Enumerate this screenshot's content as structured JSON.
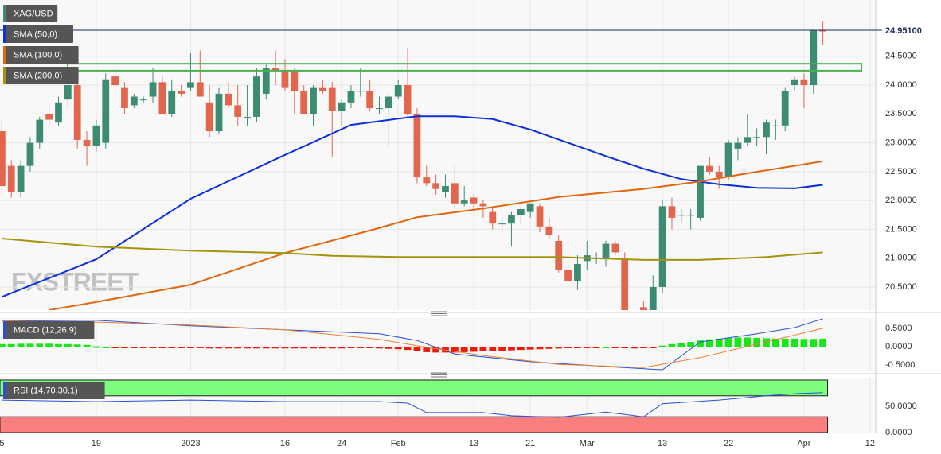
{
  "chart_data": [
    {
      "type": "candlestick",
      "title": "XAG/USD",
      "watermark": "FXSTREET",
      "up_color": "#3d8b73",
      "down_color": "#e2664d",
      "ohlc": [
        [
          23.2,
          23.4,
          22.1,
          22.25
        ],
        [
          22.6,
          22.7,
          22.05,
          22.15
        ],
        [
          22.15,
          22.7,
          22.05,
          22.6
        ],
        [
          22.6,
          23.1,
          22.5,
          23.0
        ],
        [
          23.0,
          23.45,
          22.9,
          23.4
        ],
        [
          23.5,
          23.7,
          23.3,
          23.4
        ],
        [
          23.35,
          23.8,
          23.3,
          23.7
        ],
        [
          23.75,
          24.2,
          23.6,
          24.0
        ],
        [
          24.0,
          24.1,
          22.9,
          23.05
        ],
        [
          23.05,
          23.2,
          22.6,
          22.95
        ],
        [
          22.95,
          23.4,
          22.85,
          23.3
        ],
        [
          23.0,
          24.2,
          22.9,
          24.1
        ],
        [
          24.15,
          24.3,
          23.9,
          24.0
        ],
        [
          23.95,
          24.05,
          23.5,
          23.6
        ],
        [
          23.65,
          23.85,
          23.6,
          23.8
        ],
        [
          23.75,
          23.8,
          23.7,
          23.75
        ],
        [
          23.8,
          24.3,
          23.7,
          24.05
        ],
        [
          24.05,
          24.15,
          23.5,
          23.5
        ],
        [
          23.5,
          24.1,
          23.45,
          23.9
        ],
        [
          23.9,
          24.0,
          23.8,
          23.85
        ],
        [
          23.95,
          24.55,
          23.9,
          24.05
        ],
        [
          24.05,
          24.6,
          23.85,
          23.8
        ],
        [
          23.7,
          24.0,
          23.1,
          23.2
        ],
        [
          23.2,
          23.95,
          23.15,
          23.85
        ],
        [
          23.85,
          24.05,
          23.6,
          23.65
        ],
        [
          23.65,
          24.0,
          23.3,
          23.45
        ],
        [
          23.45,
          24.0,
          23.3,
          23.45
        ],
        [
          23.45,
          24.3,
          23.35,
          24.15
        ],
        [
          23.85,
          24.35,
          23.75,
          24.3
        ],
        [
          24.3,
          24.6,
          24.0,
          24.25
        ],
        [
          24.25,
          24.45,
          23.9,
          23.95
        ],
        [
          24.25,
          24.3,
          23.5,
          23.9
        ],
        [
          23.9,
          24.0,
          23.5,
          23.5
        ],
        [
          23.5,
          24.0,
          23.3,
          23.95
        ],
        [
          23.95,
          24.1,
          23.85,
          23.9
        ],
        [
          23.95,
          24.05,
          22.75,
          23.55
        ],
        [
          23.55,
          23.75,
          23.3,
          23.7
        ],
        [
          23.7,
          24.0,
          23.6,
          23.9
        ],
        [
          23.9,
          24.3,
          23.8,
          23.9
        ],
        [
          23.9,
          24.1,
          23.55,
          23.6
        ],
        [
          23.6,
          23.8,
          23.5,
          23.6
        ],
        [
          23.6,
          23.85,
          22.95,
          23.8
        ],
        [
          23.8,
          24.1,
          23.75,
          24.0
        ],
        [
          24.0,
          24.65,
          23.45,
          23.5
        ],
        [
          23.5,
          23.6,
          22.3,
          22.4
        ],
        [
          22.4,
          22.6,
          22.25,
          22.3
        ],
        [
          22.3,
          22.45,
          22.1,
          22.2
        ],
        [
          22.15,
          22.45,
          22.05,
          22.25
        ],
        [
          22.3,
          22.6,
          21.9,
          21.95
        ],
        [
          21.95,
          22.25,
          21.9,
          22.0
        ],
        [
          22.05,
          22.1,
          21.85,
          21.95
        ],
        [
          21.95,
          22.0,
          21.7,
          21.9
        ],
        [
          21.8,
          21.9,
          21.5,
          21.6
        ],
        [
          21.6,
          21.7,
          21.45,
          21.6
        ],
        [
          21.6,
          21.8,
          21.2,
          21.75
        ],
        [
          21.75,
          21.9,
          21.6,
          21.85
        ],
        [
          21.8,
          21.95,
          21.7,
          21.95
        ],
        [
          21.9,
          21.95,
          21.45,
          21.55
        ],
        [
          21.55,
          21.7,
          21.35,
          21.4
        ],
        [
          21.3,
          21.4,
          20.75,
          20.8
        ],
        [
          20.8,
          20.95,
          20.6,
          20.6
        ],
        [
          20.6,
          21.05,
          20.45,
          20.9
        ],
        [
          20.95,
          21.3,
          20.8,
          21.05
        ],
        [
          21.0,
          21.1,
          20.9,
          21.0
        ],
        [
          21.0,
          21.3,
          20.85,
          21.25
        ],
        [
          21.25,
          21.3,
          21.05,
          21.1
        ],
        [
          21.0,
          21.1,
          20.05,
          20.1
        ],
        [
          20.1,
          20.25,
          20.0,
          20.05
        ],
        [
          20.15,
          20.25,
          20.05,
          20.1
        ],
        [
          20.1,
          20.7,
          20.05,
          20.5
        ],
        [
          20.5,
          22.0,
          20.4,
          21.9
        ],
        [
          21.9,
          22.05,
          21.5,
          21.7
        ],
        [
          21.75,
          21.85,
          21.6,
          21.75
        ],
        [
          21.75,
          21.85,
          21.5,
          21.75
        ],
        [
          21.7,
          22.6,
          21.65,
          22.6
        ],
        [
          22.6,
          22.75,
          22.45,
          22.5
        ],
        [
          22.5,
          22.6,
          22.2,
          22.4
        ],
        [
          22.4,
          23.05,
          22.35,
          23.0
        ],
        [
          22.9,
          23.1,
          22.7,
          23.0
        ],
        [
          23.0,
          23.5,
          22.95,
          23.1
        ],
        [
          23.1,
          23.25,
          22.95,
          23.1
        ],
        [
          23.1,
          23.4,
          22.8,
          23.35
        ],
        [
          23.3,
          23.4,
          23.05,
          23.3
        ],
        [
          23.3,
          23.95,
          23.2,
          23.9
        ],
        [
          24.0,
          24.15,
          23.9,
          24.1
        ],
        [
          24.1,
          24.2,
          23.6,
          24.0
        ],
        [
          24.0,
          24.95,
          23.85,
          24.95
        ],
        [
          24.95,
          25.1,
          24.7,
          24.93
        ]
      ],
      "series": [
        {
          "name": "SMA (50,0)",
          "color": "#0b2fd8",
          "x": [
            0,
            10,
            20,
            30,
            37,
            44,
            48,
            52,
            56,
            60,
            64,
            68,
            72,
            76,
            80,
            84,
            87
          ],
          "values": [
            20.33,
            20.98,
            22.03,
            22.79,
            23.31,
            23.46,
            23.46,
            23.41,
            23.23,
            23.0,
            22.77,
            22.55,
            22.37,
            22.28,
            22.22,
            22.21,
            22.27
          ]
        },
        {
          "name": "SMA (100,0)",
          "color": "#e2660f",
          "x": [
            5,
            10,
            20,
            30,
            39,
            44,
            51,
            59,
            68,
            74,
            79,
            87
          ],
          "values": [
            20.1,
            20.24,
            20.54,
            21.09,
            21.48,
            21.71,
            21.86,
            22.06,
            22.2,
            22.33,
            22.47,
            22.68
          ]
        },
        {
          "name": "SMA (200,0)",
          "color": "#a5930e",
          "x": [
            0,
            10,
            20,
            30,
            35,
            42,
            59,
            68,
            74,
            81,
            87
          ],
          "values": [
            21.34,
            21.2,
            21.13,
            21.09,
            21.04,
            21.02,
            21.02,
            20.97,
            20.97,
            21.02,
            21.1
          ]
        }
      ],
      "zone": [
        24.25,
        24.37
      ],
      "zone_color": "#4caf50",
      "last_price": {
        "value": 24.951,
        "label": "24.95100"
      },
      "xlim": [
        -0.2,
        92.6
      ],
      "xticks": [
        {
          "value": 0,
          "label": "5"
        },
        {
          "value": 10,
          "label": "19"
        },
        {
          "value": 20,
          "label": "2023"
        },
        {
          "value": 30,
          "label": "16"
        },
        {
          "value": 36,
          "label": "24"
        },
        {
          "value": 42,
          "label": "Feb"
        },
        {
          "value": 50,
          "label": "13"
        },
        {
          "value": 56,
          "label": "21"
        },
        {
          "value": 62,
          "label": "Mar"
        },
        {
          "value": 70,
          "label": "13"
        },
        {
          "value": 77,
          "label": "22"
        },
        {
          "value": 85,
          "label": "Apr"
        },
        {
          "value": 92,
          "label": "12"
        }
      ],
      "ylim": [
        20.1,
        25.475
      ],
      "yticks": [
        {
          "value": 20.5,
          "label": "20.5000"
        },
        {
          "value": 21,
          "label": "21.0000"
        },
        {
          "value": 21.5,
          "label": "21.5000"
        },
        {
          "value": 22,
          "label": "22.0000"
        },
        {
          "value": 22.5,
          "label": "22.5000"
        },
        {
          "value": 23,
          "label": "23.0000"
        },
        {
          "value": 23.5,
          "label": "23.5000"
        },
        {
          "value": 24,
          "label": "24.0000"
        },
        {
          "value": 24.5,
          "label": "24.5000"
        }
      ]
    },
    {
      "type": "macd",
      "title": "MACD (12,26,9)",
      "histogram": {
        "pos_color": "#19e619",
        "neg_color": "#f01a0a",
        "values": [
          0.07,
          0.07,
          0.08,
          0.08,
          0.08,
          0.08,
          0.07,
          0.07,
          0.06,
          0.05,
          0.01,
          0.0,
          -0.01,
          -0.02,
          -0.02,
          -0.02,
          -0.03,
          -0.03,
          -0.03,
          -0.03,
          -0.04,
          -0.04,
          -0.05,
          -0.05,
          -0.05,
          -0.05,
          -0.05,
          -0.05,
          -0.05,
          -0.05,
          -0.05,
          -0.05,
          -0.05,
          -0.05,
          -0.05,
          -0.05,
          -0.05,
          -0.04,
          -0.04,
          -0.04,
          -0.05,
          -0.06,
          -0.07,
          -0.09,
          -0.13,
          -0.15,
          -0.16,
          -0.16,
          -0.16,
          -0.15,
          -0.14,
          -0.13,
          -0.12,
          -0.11,
          -0.1,
          -0.09,
          -0.08,
          -0.07,
          -0.06,
          -0.05,
          -0.04,
          -0.03,
          -0.02,
          -0.01,
          0.0,
          -0.02,
          -0.04,
          -0.05,
          -0.04,
          -0.02,
          0.03,
          0.07,
          0.1,
          0.13,
          0.17,
          0.2,
          0.22,
          0.24,
          0.25,
          0.25,
          0.24,
          0.23,
          0.22,
          0.22,
          0.22,
          0.21,
          0.21,
          0.22
        ]
      },
      "series": [
        {
          "color": "#2b4fd8",
          "x": [
            0,
            10,
            20,
            30,
            40,
            44,
            48,
            56,
            64,
            70,
            74,
            80,
            84,
            87
          ],
          "values": [
            0.7,
            0.72,
            0.57,
            0.46,
            0.35,
            0.17,
            -0.2,
            -0.41,
            -0.54,
            -0.63,
            0.13,
            0.35,
            0.52,
            0.76
          ]
        },
        {
          "color": "#f08030",
          "x": [
            0,
            10,
            20,
            30,
            40,
            45,
            51,
            59,
            68,
            74,
            81,
            87
          ],
          "values": [
            0.7,
            0.67,
            0.59,
            0.46,
            0.2,
            -0.02,
            -0.24,
            -0.48,
            -0.57,
            -0.3,
            0.13,
            0.5
          ]
        }
      ],
      "ylim": [
        -0.65,
        0.78
      ],
      "yticks": [
        {
          "value": -0.5,
          "label": "-0.5000"
        },
        {
          "value": 0,
          "label": "0.0000"
        },
        {
          "value": 0.5,
          "label": "0.5000"
        }
      ]
    },
    {
      "type": "rsi",
      "title": "RSI (14,70,30,1)",
      "bands": [
        {
          "range": [
            70,
            100
          ],
          "color": "#7dfc7d"
        },
        {
          "range": [
            0,
            30
          ],
          "color": "#fb7f7f"
        }
      ],
      "series": [
        {
          "color": "#2b4fd8",
          "x": [
            0,
            10,
            20,
            30,
            40,
            43,
            45,
            51,
            54,
            59,
            64,
            68,
            70,
            76,
            81,
            84,
            87
          ],
          "values": [
            62,
            59,
            62,
            59,
            59,
            56,
            38,
            38,
            32,
            29,
            39,
            30,
            55,
            62,
            70,
            74,
            76
          ]
        }
      ],
      "ylim": [
        -1.5,
        103
      ],
      "yticks": [
        {
          "value": 0,
          "label": "0.0000"
        },
        {
          "value": 50,
          "label": "50.0000"
        }
      ]
    }
  ]
}
